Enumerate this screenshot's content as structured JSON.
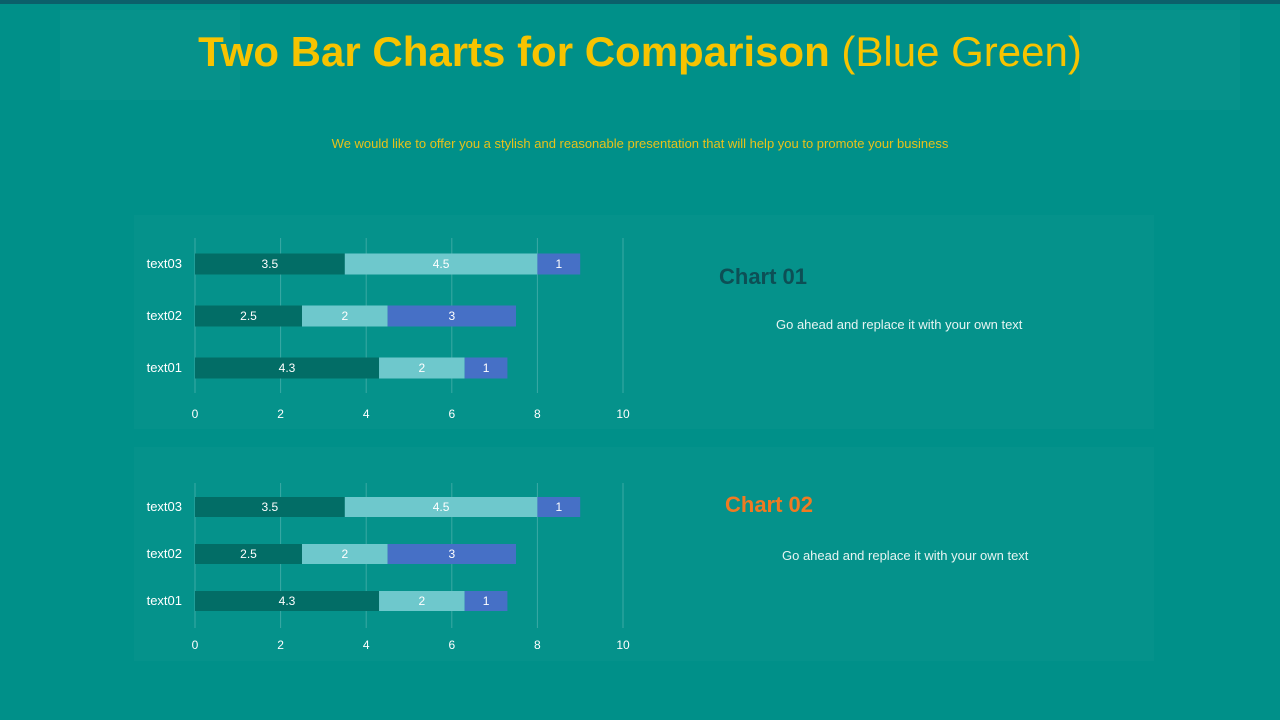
{
  "header": {
    "title_bold": "Two Bar Charts for Comparison",
    "title_light": "(Blue Green)",
    "subtitle": "We would like to offer you a stylish and reasonable presentation that will help you to promote your business"
  },
  "colors": {
    "background": "#009089",
    "title": "#f7c300",
    "series_1": "#026d66",
    "series_2": "#6ec8cc",
    "series_3": "#4670c6",
    "chart01_title": "#0d4f55",
    "chart02_title": "#f07a22"
  },
  "charts": [
    {
      "title": "Chart 01",
      "description": "Go ahead and replace it with your own text"
    },
    {
      "title": "Chart 02",
      "description": "Go ahead and replace it with your own text"
    }
  ],
  "chart_data": [
    {
      "type": "bar",
      "orientation": "horizontal",
      "stacked": true,
      "categories": [
        "text01",
        "text02",
        "text03"
      ],
      "series": [
        {
          "values": [
            4.3,
            2.5,
            3.5
          ]
        },
        {
          "values": [
            2,
            2,
            4.5
          ]
        },
        {
          "values": [
            1,
            3,
            1
          ]
        }
      ],
      "xlim": [
        0,
        10
      ],
      "xticks": [
        0,
        2,
        4,
        6,
        8,
        10
      ],
      "grid": true,
      "data_labels": true
    },
    {
      "type": "bar",
      "orientation": "horizontal",
      "stacked": true,
      "categories": [
        "text01",
        "text02",
        "text03"
      ],
      "series": [
        {
          "values": [
            4.3,
            2.5,
            3.5
          ]
        },
        {
          "values": [
            2,
            2,
            4.5
          ]
        },
        {
          "values": [
            1,
            3,
            1
          ]
        }
      ],
      "xlim": [
        0,
        10
      ],
      "xticks": [
        0,
        2,
        4,
        6,
        8,
        10
      ],
      "grid": true,
      "data_labels": true
    }
  ]
}
